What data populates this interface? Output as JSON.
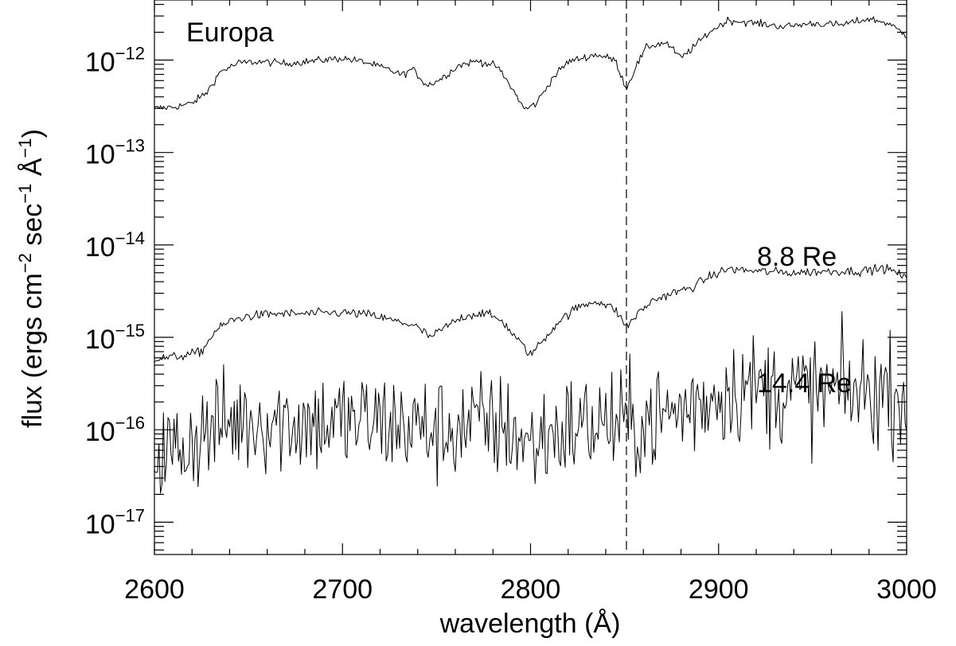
{
  "chart_data": {
    "type": "line",
    "title": "",
    "xlabel": "wavelength (Å)",
    "ylabel": {
      "prefix": "flux (ergs cm",
      "exp1": "−2",
      "mid": " sec",
      "exp2": "−1",
      "mid2": " Å",
      "exp3": "−1",
      "suffix": ")"
    },
    "xlim": [
      2600,
      3000
    ],
    "ylim_log10": [
      -17.35,
      -11.35
    ],
    "y_scale": "log",
    "grid": false,
    "xticks": [
      2600,
      2700,
      2800,
      2900,
      3000
    ],
    "xtick_labels": [
      "2600",
      "2700",
      "2800",
      "2900",
      "3000"
    ],
    "yticks_log10": [
      -17,
      -16,
      -15,
      -14,
      -13,
      -12
    ],
    "ytick_labels": [
      {
        "base": "10",
        "exp": "−17"
      },
      {
        "base": "10",
        "exp": "−16"
      },
      {
        "base": "10",
        "exp": "−15"
      },
      {
        "base": "10",
        "exp": "−14"
      },
      {
        "base": "10",
        "exp": "−13"
      },
      {
        "base": "10",
        "exp": "−12"
      }
    ],
    "vline_x": 2851,
    "vline_style": "dashed",
    "annotations": {
      "europa": "Europa",
      "re88": "8.8 Re",
      "re144": "14.4 Re"
    },
    "series": [
      {
        "noise": 0.02,
        "points": [
          [
            2600,
            3e-13
          ],
          [
            2610,
            3.1e-13
          ],
          [
            2620,
            3.4e-13
          ],
          [
            2628,
            4.5e-13
          ],
          [
            2635,
            7.5e-13
          ],
          [
            2645,
            9.3e-13
          ],
          [
            2655,
            9.6e-13
          ],
          [
            2670,
            9.2e-13
          ],
          [
            2685,
            9.8e-13
          ],
          [
            2700,
            1.05e-12
          ],
          [
            2712,
            9.5e-13
          ],
          [
            2725,
            7.8e-13
          ],
          [
            2732,
            6.9e-13
          ],
          [
            2737,
            8e-13
          ],
          [
            2745,
            5.3e-13
          ],
          [
            2752,
            6.2e-13
          ],
          [
            2762,
            8.8e-13
          ],
          [
            2772,
            9.8e-13
          ],
          [
            2782,
            8.6e-13
          ],
          [
            2790,
            5e-13
          ],
          [
            2797,
            2.9e-13
          ],
          [
            2803,
            3.4e-13
          ],
          [
            2812,
            6.5e-13
          ],
          [
            2820,
            9.6e-13
          ],
          [
            2835,
            1.15e-12
          ],
          [
            2845,
            1e-12
          ],
          [
            2851,
            4.9e-13
          ],
          [
            2856,
            8.5e-13
          ],
          [
            2862,
            1.4e-12
          ],
          [
            2872,
            1.55e-12
          ],
          [
            2880,
            1.05e-12
          ],
          [
            2887,
            1.4e-12
          ],
          [
            2895,
            2e-12
          ],
          [
            2905,
            2.7e-12
          ],
          [
            2920,
            2.5e-12
          ],
          [
            2935,
            2.3e-12
          ],
          [
            2950,
            2.5e-12
          ],
          [
            2965,
            2.4e-12
          ],
          [
            2980,
            2.8e-12
          ],
          [
            2990,
            2.5e-12
          ],
          [
            3000,
            1.85e-12
          ]
        ]
      },
      {
        "noise": 0.025,
        "points": [
          [
            2600,
            5.8e-16
          ],
          [
            2615,
            6.3e-16
          ],
          [
            2625,
            7e-16
          ],
          [
            2632,
            1.15e-15
          ],
          [
            2640,
            1.5e-15
          ],
          [
            2650,
            1.7e-15
          ],
          [
            2665,
            1.8e-15
          ],
          [
            2680,
            1.8e-15
          ],
          [
            2700,
            1.85e-15
          ],
          [
            2715,
            1.75e-15
          ],
          [
            2725,
            1.55e-15
          ],
          [
            2738,
            1.35e-15
          ],
          [
            2747,
            1e-15
          ],
          [
            2755,
            1.3e-15
          ],
          [
            2765,
            1.7e-15
          ],
          [
            2775,
            1.85e-15
          ],
          [
            2785,
            1.5e-15
          ],
          [
            2792,
            1e-15
          ],
          [
            2800,
            6.5e-16
          ],
          [
            2808,
            1e-15
          ],
          [
            2815,
            1.5e-15
          ],
          [
            2825,
            2.1e-15
          ],
          [
            2835,
            2.5e-15
          ],
          [
            2845,
            2e-15
          ],
          [
            2851,
            1.3e-15
          ],
          [
            2857,
            1.8e-15
          ],
          [
            2865,
            2.5e-15
          ],
          [
            2875,
            3e-15
          ],
          [
            2885,
            3.4e-15
          ],
          [
            2895,
            4.5e-15
          ],
          [
            2905,
            5.5e-15
          ],
          [
            2920,
            5.2e-15
          ],
          [
            2940,
            5e-15
          ],
          [
            2960,
            5.2e-15
          ],
          [
            2975,
            5.2e-15
          ],
          [
            2988,
            5.6e-15
          ],
          [
            2995,
            5e-15
          ],
          [
            3000,
            4.2e-15
          ]
        ]
      },
      {
        "noise": 0.3,
        "points": [
          [
            2600,
            6.5e-17
          ],
          [
            2610,
            5.5e-17
          ],
          [
            2620,
            8e-17
          ],
          [
            2630,
            1e-16
          ],
          [
            2645,
            1.25e-16
          ],
          [
            2660,
            1.3e-16
          ],
          [
            2680,
            1.2e-16
          ],
          [
            2700,
            1.2e-16
          ],
          [
            2720,
            1.2e-16
          ],
          [
            2740,
            1.05e-16
          ],
          [
            2750,
            9.5e-17
          ],
          [
            2760,
            1.05e-16
          ],
          [
            2775,
            1.15e-16
          ],
          [
            2790,
            1e-16
          ],
          [
            2800,
            6.5e-17
          ],
          [
            2810,
            9e-17
          ],
          [
            2825,
            1.1e-16
          ],
          [
            2840,
            1.2e-16
          ],
          [
            2850,
            1.1e-16
          ],
          [
            2860,
            1.2e-16
          ],
          [
            2880,
            1.6e-16
          ],
          [
            2900,
            2.5e-16
          ],
          [
            2910,
            2.9e-16
          ],
          [
            2930,
            2.7e-16
          ],
          [
            2950,
            2.6e-16
          ],
          [
            2970,
            2.6e-16
          ],
          [
            2990,
            2.6e-16
          ],
          [
            3000,
            2.4e-16
          ]
        ]
      }
    ]
  },
  "colors": {
    "background": "#ffffff",
    "foreground": "#000000"
  }
}
